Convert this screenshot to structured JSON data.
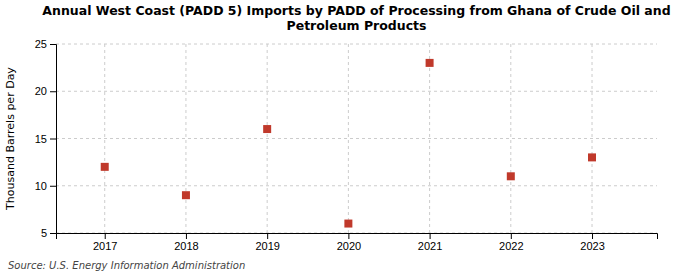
{
  "chart_data": {
    "type": "scatter",
    "title": "Annual West Coast (PADD 5) Imports by PADD of Processing from Ghana of Crude Oil and\nPetroleum Products",
    "x": [
      2017,
      2018,
      2019,
      2020,
      2021,
      2022,
      2023
    ],
    "values": [
      12,
      9,
      16,
      6,
      23,
      11,
      13
    ],
    "ylabel": "Thousand Barrels per Day",
    "source": "Source: U.S. Energy Information Administration",
    "xlim": [
      2016.4,
      2023.8
    ],
    "xticks": [
      2017,
      2018,
      2019,
      2020,
      2021,
      2022,
      2023
    ],
    "ylim": [
      5,
      25
    ],
    "yticks": [
      5,
      10,
      15,
      20,
      25
    ],
    "color": "#c0392b",
    "marker": "square",
    "grid": true
  }
}
